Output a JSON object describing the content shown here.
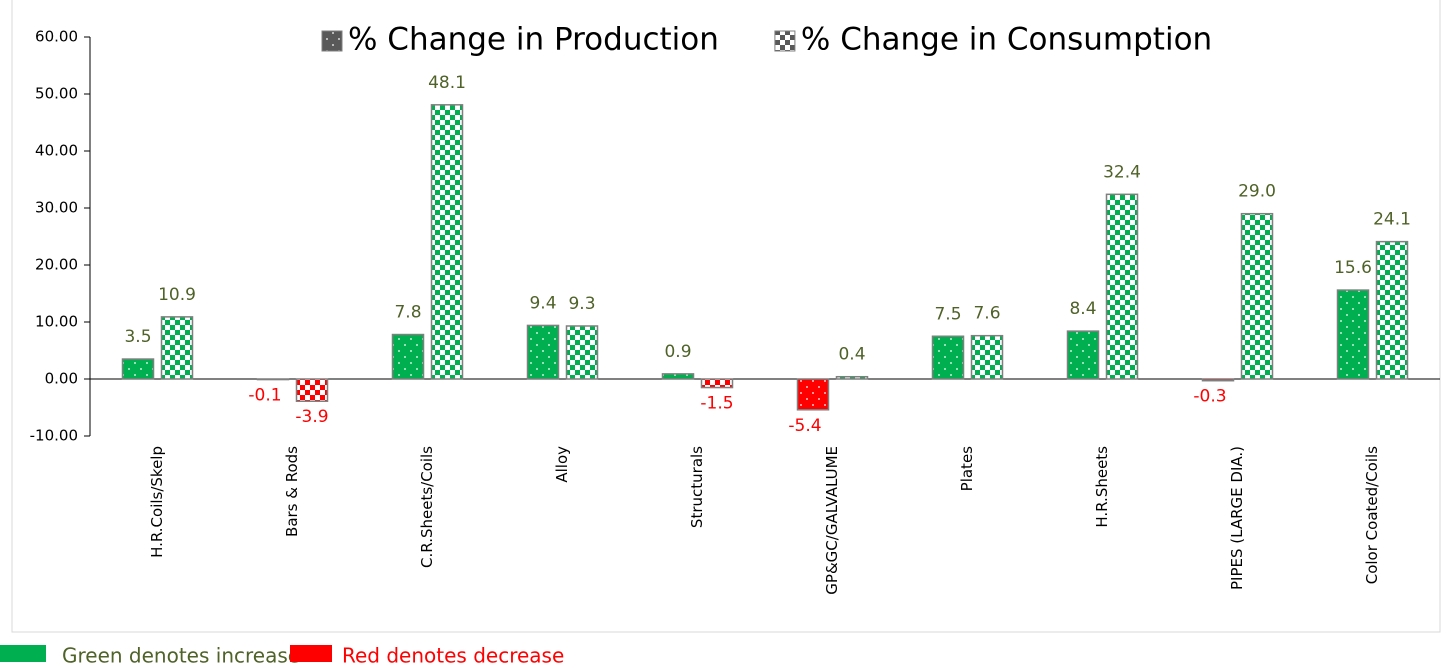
{
  "chart_data": {
    "type": "bar",
    "categories": [
      "H.R.Coils/Skelp",
      "Bars & Rods",
      "C.R.Sheets/Coils",
      "Alloy",
      "Structurals",
      "GP&GC/GALVALUME",
      "Plates",
      "H.R.Sheets",
      "PIPES (LARGE DIA.)",
      "Color Coated/Coils"
    ],
    "series": [
      {
        "name": "% Change in Production",
        "values": [
          3.5,
          -0.1,
          7.8,
          9.4,
          0.9,
          -5.4,
          7.5,
          8.4,
          -0.3,
          15.6
        ],
        "value_labels": [
          "3.5",
          "-0.1",
          "7.8",
          "9.4",
          "0.9",
          "-5.4",
          "7.5",
          "8.4",
          "-0.3",
          "15.6"
        ]
      },
      {
        "name": "% Change in Consumption",
        "values": [
          10.9,
          -3.9,
          48.1,
          9.3,
          -1.5,
          0.4,
          7.6,
          32.4,
          29.0,
          24.1
        ],
        "value_labels": [
          "10.9",
          "-3.9",
          "48.1",
          "9.3",
          "-1.5",
          "0.4",
          "7.6",
          "32.4",
          "29.0",
          "24.1"
        ]
      }
    ],
    "positive_color": "#00b050",
    "negative_color": "#ff0000",
    "positive_label_color": "#4f6228",
    "legend_swatch_color": "#595959",
    "ylim": [
      -10,
      60
    ],
    "yticks": [
      {
        "value": -10,
        "label": "-10.00"
      },
      {
        "value": 0,
        "label": "0.00"
      },
      {
        "value": 10,
        "label": "10.00"
      },
      {
        "value": 20,
        "label": "20.00"
      },
      {
        "value": 30,
        "label": "30.00"
      },
      {
        "value": 40,
        "label": "40.00"
      },
      {
        "value": 50,
        "label": "50.00"
      },
      {
        "value": 60,
        "label": "60.00"
      }
    ],
    "notes": [
      "Green denotes increase",
      "Red denotes decrease"
    ]
  }
}
